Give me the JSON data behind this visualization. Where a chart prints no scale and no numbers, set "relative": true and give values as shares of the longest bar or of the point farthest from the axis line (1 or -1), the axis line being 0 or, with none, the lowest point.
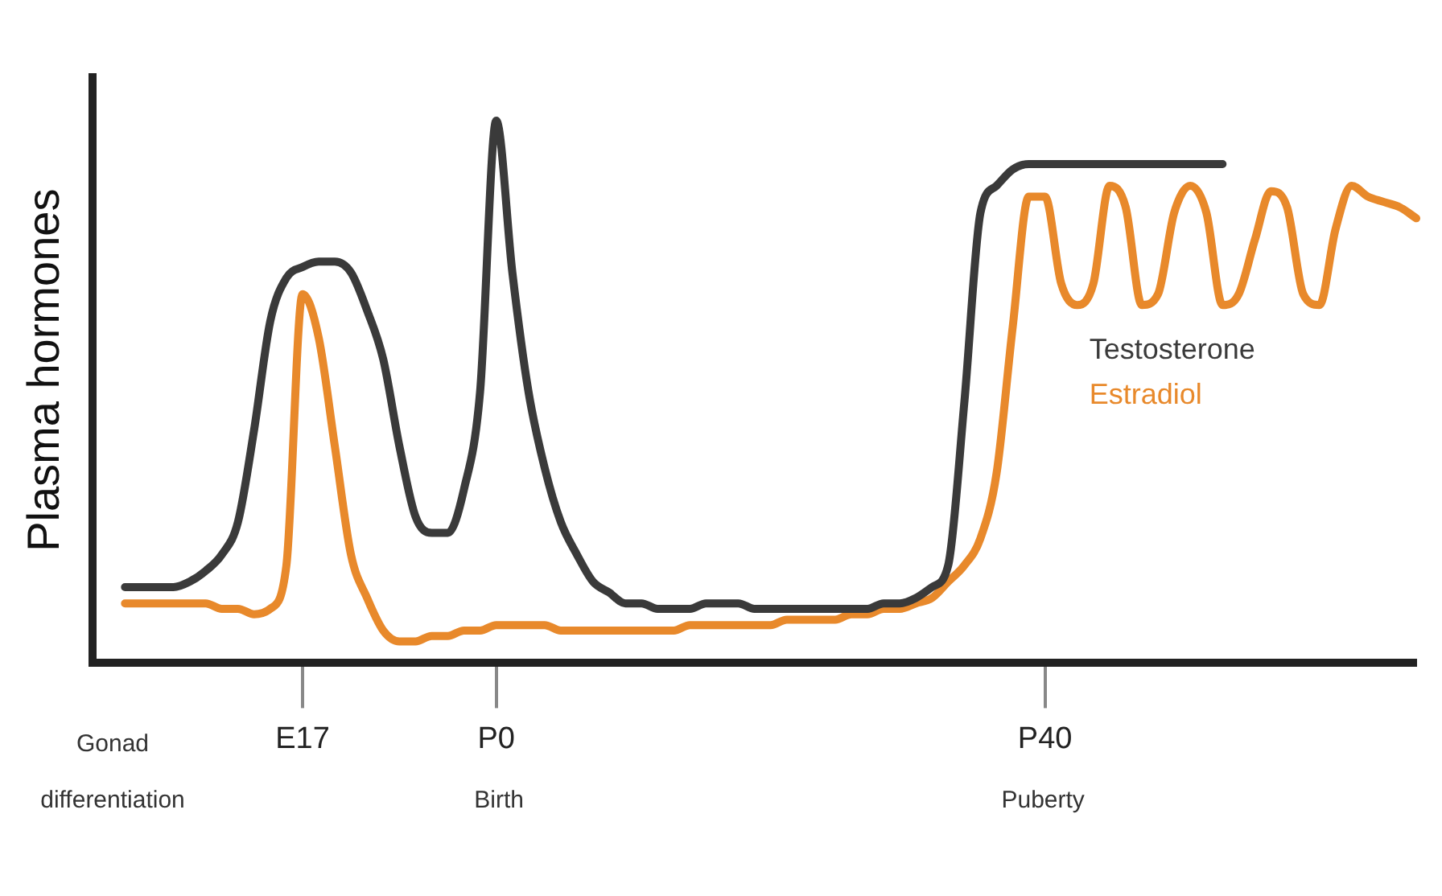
{
  "chart_data": {
    "type": "line",
    "ylabel": "Plasma hormones",
    "relative": true,
    "categories": [
      null,
      null,
      null,
      null,
      null,
      null,
      null,
      null,
      null,
      null,
      null,
      null,
      null,
      "E17",
      null,
      null,
      null,
      null,
      null,
      null,
      null,
      null,
      null,
      null,
      null,
      "P0",
      null,
      null,
      null,
      null,
      null,
      null,
      null,
      null,
      null,
      null,
      null,
      null,
      null,
      null,
      null,
      null,
      null,
      null,
      null,
      null,
      null,
      null,
      null,
      null,
      null,
      null,
      null,
      null,
      null,
      null,
      null,
      null,
      null,
      "P40",
      null,
      null,
      null,
      null,
      null,
      null,
      null,
      null,
      null,
      null,
      null,
      null,
      null,
      null,
      null,
      null,
      null,
      null,
      null,
      null,
      null,
      null,
      null
    ],
    "tick_labels": "x",
    "grid": false,
    "marker": "none",
    "line_style": "solid",
    "annotations": [
      "Gonad differentiation",
      "Birth",
      "Puberty"
    ],
    "series": [
      {
        "name": "Testosterone",
        "color": "#3a3a3a",
        "values": [
          null,
          null,
          0.14,
          0.14,
          0.14,
          0.14,
          0.15,
          0.17,
          0.2,
          0.26,
          0.43,
          0.63,
          0.71,
          0.73,
          0.74,
          0.74,
          0.72,
          0.65,
          0.56,
          0.4,
          0.27,
          0.24,
          0.24,
          0.32,
          0.5,
          1,
          0.72,
          0.5,
          0.36,
          0.26,
          0.2,
          0.15,
          0.13,
          0.11,
          0.11,
          0.1,
          0.1,
          0.1,
          0.11,
          0.11,
          0.11,
          0.1,
          0.1,
          0.1,
          0.1,
          0.1,
          0.1,
          0.1,
          0.1,
          0.11,
          0.11,
          0.12,
          0.14,
          0.18,
          0.48,
          0.83,
          0.88,
          0.91,
          0.92,
          0.92,
          0.92,
          0.92,
          0.92,
          0.92,
          0.92,
          0.92,
          0.92,
          0.92,
          0.92,
          0.92,
          0.92,
          null,
          null,
          null,
          null,
          null,
          null,
          null,
          null,
          null,
          null,
          null,
          null
        ]
      },
      {
        "name": "Estradiol",
        "color": "#e8892b",
        "values": [
          null,
          null,
          0.11,
          0.11,
          0.11,
          0.11,
          0.11,
          0.11,
          0.1,
          0.1,
          0.09,
          0.1,
          0.18,
          0.68,
          0.6,
          0.4,
          0.2,
          0.12,
          0.06,
          0.04,
          0.04,
          0.05,
          0.05,
          0.06,
          0.06,
          0.07,
          0.07,
          0.07,
          0.07,
          0.06,
          0.06,
          0.06,
          0.06,
          0.06,
          0.06,
          0.06,
          0.06,
          0.07,
          0.07,
          0.07,
          0.07,
          0.07,
          0.07,
          0.08,
          0.08,
          0.08,
          0.08,
          0.09,
          0.09,
          0.1,
          0.1,
          0.11,
          0.12,
          0.15,
          0.18,
          0.23,
          0.35,
          0.62,
          0.86,
          0.86,
          0.7,
          0.66,
          0.7,
          0.88,
          0.84,
          0.66,
          0.68,
          0.83,
          0.88,
          0.83,
          0.66,
          0.68,
          0.78,
          0.87,
          0.84,
          0.68,
          0.66,
          0.8,
          0.88,
          0.86,
          0.85,
          0.84,
          0.82
        ]
      }
    ]
  }
}
